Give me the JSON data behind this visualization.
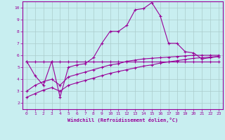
{
  "xlabel": "Windchill (Refroidissement éolien,°C)",
  "bg_color": "#c8eef0",
  "line_color": "#990099",
  "grid_color": "#aacccc",
  "xlim": [
    -0.5,
    23.5
  ],
  "ylim": [
    1.5,
    10.5
  ],
  "xticks": [
    0,
    1,
    2,
    3,
    4,
    5,
    6,
    7,
    8,
    9,
    10,
    11,
    12,
    13,
    14,
    15,
    16,
    17,
    18,
    19,
    20,
    21,
    22,
    23
  ],
  "yticks": [
    2,
    3,
    4,
    5,
    6,
    7,
    8,
    9,
    10
  ],
  "line1_x": [
    0,
    1,
    2,
    3,
    4,
    5,
    6,
    7,
    8,
    9,
    10,
    11,
    12,
    13,
    14,
    15,
    16,
    17,
    18,
    19,
    20,
    21,
    22,
    23
  ],
  "line1_y": [
    5.5,
    4.3,
    3.5,
    5.5,
    2.5,
    5.0,
    5.2,
    5.3,
    5.8,
    7.0,
    8.0,
    8.0,
    8.5,
    9.8,
    9.9,
    10.4,
    9.3,
    7.0,
    7.0,
    6.3,
    6.2,
    5.7,
    5.8,
    5.9
  ],
  "line2_x": [
    0,
    1,
    2,
    3,
    4,
    5,
    6,
    7,
    8,
    9,
    10,
    11,
    12,
    13,
    14,
    15,
    16,
    17,
    18,
    19,
    20,
    21,
    22,
    23
  ],
  "line2_y": [
    5.5,
    5.5,
    5.5,
    5.5,
    5.5,
    5.5,
    5.5,
    5.5,
    5.5,
    5.5,
    5.5,
    5.5,
    5.5,
    5.5,
    5.5,
    5.5,
    5.5,
    5.5,
    5.5,
    5.5,
    5.5,
    5.5,
    5.5,
    5.5
  ],
  "line3_x": [
    0,
    1,
    2,
    3,
    4,
    5,
    6,
    7,
    8,
    9,
    10,
    11,
    12,
    13,
    14,
    15,
    16,
    17,
    18,
    19,
    20,
    21,
    22,
    23
  ],
  "line3_y": [
    3.0,
    3.5,
    3.8,
    4.0,
    3.5,
    4.2,
    4.4,
    4.6,
    4.8,
    5.0,
    5.2,
    5.3,
    5.5,
    5.6,
    5.7,
    5.75,
    5.8,
    5.85,
    5.9,
    5.95,
    6.0,
    6.0,
    6.0,
    6.0
  ],
  "line4_x": [
    0,
    1,
    2,
    3,
    4,
    5,
    6,
    7,
    8,
    9,
    10,
    11,
    12,
    13,
    14,
    15,
    16,
    17,
    18,
    19,
    20,
    21,
    22,
    23
  ],
  "line4_y": [
    2.5,
    2.8,
    3.1,
    3.3,
    3.0,
    3.5,
    3.7,
    3.9,
    4.1,
    4.3,
    4.5,
    4.65,
    4.8,
    4.95,
    5.1,
    5.2,
    5.35,
    5.45,
    5.55,
    5.65,
    5.75,
    5.8,
    5.85,
    5.9
  ]
}
